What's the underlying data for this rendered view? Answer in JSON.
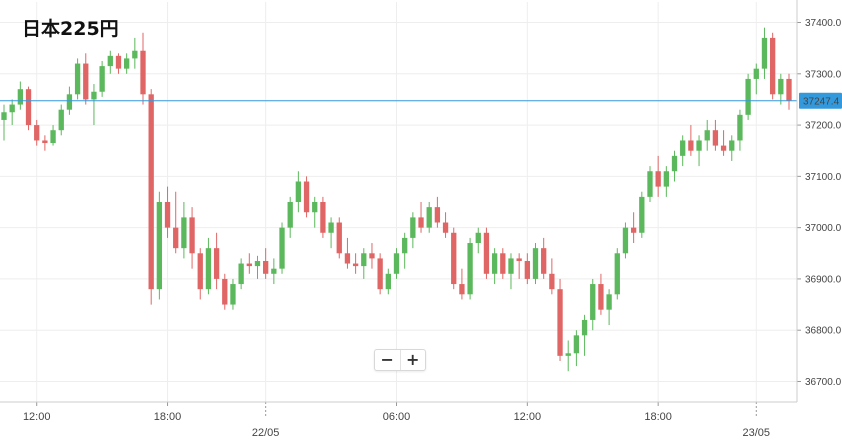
{
  "colors": {
    "up": "#5cb85c",
    "down": "#e06666",
    "price_line": "#3399dd",
    "price_badge": "#3399dd",
    "grid": "#eeeeee"
  },
  "zoom": {
    "minus": "−",
    "plus": "+",
    "minus_icon": "minus-icon",
    "plus_icon": "plus-icon"
  },
  "chart_data": {
    "type": "candlestick",
    "title": "日本225円",
    "xlabel": "",
    "ylabel": "",
    "ylim": [
      36660,
      37440
    ],
    "y_ticks": [
      36700,
      36800,
      36900,
      37000,
      37100,
      37200,
      37300,
      37400
    ],
    "y_tick_labels": [
      "36700.0",
      "36800.0",
      "36900.0",
      "37000.0",
      "37100.0",
      "37200.0",
      "37300.0",
      "37400.0"
    ],
    "x_ticks": [
      {
        "index": 4,
        "label": "12:00"
      },
      {
        "index": 20,
        "label": "18:00"
      },
      {
        "index": 32,
        "label": "22/05"
      },
      {
        "index": 48,
        "label": "06:00"
      },
      {
        "index": 64,
        "label": "12:00"
      },
      {
        "index": 80,
        "label": "18:00"
      },
      {
        "index": 92,
        "label": "23/05"
      }
    ],
    "current_price": 37247.4,
    "current_price_label": "37247.4",
    "grid": true,
    "candles": [
      [
        37210,
        37240,
        37170,
        37225
      ],
      [
        37225,
        37250,
        37200,
        37240
      ],
      [
        37240,
        37285,
        37230,
        37270
      ],
      [
        37270,
        37275,
        37190,
        37200
      ],
      [
        37200,
        37210,
        37160,
        37170
      ],
      [
        37170,
        37180,
        37150,
        37165
      ],
      [
        37165,
        37200,
        37160,
        37190
      ],
      [
        37190,
        37240,
        37180,
        37230
      ],
      [
        37230,
        37275,
        37220,
        37260
      ],
      [
        37260,
        37330,
        37250,
        37320
      ],
      [
        37320,
        37340,
        37240,
        37250
      ],
      [
        37250,
        37280,
        37200,
        37265
      ],
      [
        37265,
        37325,
        37255,
        37315
      ],
      [
        37315,
        37345,
        37300,
        37335
      ],
      [
        37335,
        37340,
        37300,
        37310
      ],
      [
        37310,
        37340,
        37300,
        37330
      ],
      [
        37330,
        37370,
        37310,
        37345
      ],
      [
        37345,
        37380,
        37240,
        37260
      ],
      [
        37260,
        37270,
        36850,
        36880
      ],
      [
        36880,
        37070,
        36860,
        37050
      ],
      [
        37050,
        37080,
        36980,
        37000
      ],
      [
        37000,
        37070,
        36950,
        36960
      ],
      [
        36960,
        37050,
        36940,
        37020
      ],
      [
        37020,
        37040,
        36920,
        36950
      ],
      [
        36950,
        36960,
        36860,
        36880
      ],
      [
        36880,
        36980,
        36870,
        36960
      ],
      [
        36960,
        36990,
        36880,
        36900
      ],
      [
        36900,
        36910,
        36840,
        36850
      ],
      [
        36850,
        36900,
        36840,
        36890
      ],
      [
        36890,
        36940,
        36880,
        36930
      ],
      [
        36930,
        36950,
        36910,
        36925
      ],
      [
        36925,
        36945,
        36900,
        36935
      ],
      [
        36935,
        36960,
        36900,
        36910
      ],
      [
        36910,
        36940,
        36890,
        36920
      ],
      [
        36920,
        37010,
        36910,
        37000
      ],
      [
        37000,
        37060,
        36980,
        37050
      ],
      [
        37050,
        37110,
        37030,
        37090
      ],
      [
        37090,
        37100,
        37020,
        37030
      ],
      [
        37030,
        37060,
        37000,
        37050
      ],
      [
        37050,
        37060,
        36980,
        36990
      ],
      [
        36990,
        37020,
        36960,
        37010
      ],
      [
        37010,
        37020,
        36940,
        36950
      ],
      [
        36950,
        36980,
        36920,
        36930
      ],
      [
        36930,
        36950,
        36910,
        36925
      ],
      [
        36925,
        36960,
        36900,
        36950
      ],
      [
        36950,
        36970,
        36920,
        36940
      ],
      [
        36940,
        36950,
        36870,
        36880
      ],
      [
        36880,
        36920,
        36870,
        36910
      ],
      [
        36910,
        36960,
        36900,
        36950
      ],
      [
        36950,
        36990,
        36920,
        36980
      ],
      [
        36980,
        37030,
        36960,
        37020
      ],
      [
        37020,
        37050,
        36990,
        37000
      ],
      [
        37000,
        37050,
        36990,
        37040
      ],
      [
        37040,
        37060,
        37000,
        37010
      ],
      [
        37010,
        37030,
        36980,
        36990
      ],
      [
        36990,
        37000,
        36880,
        36890
      ],
      [
        36890,
        36920,
        36860,
        36870
      ],
      [
        36870,
        36980,
        36860,
        36970
      ],
      [
        36970,
        37000,
        36950,
        36990
      ],
      [
        36990,
        37000,
        36900,
        36910
      ],
      [
        36910,
        36960,
        36890,
        36950
      ],
      [
        36950,
        36960,
        36900,
        36910
      ],
      [
        36910,
        36950,
        36880,
        36940
      ],
      [
        36940,
        36950,
        36900,
        36935
      ],
      [
        36935,
        36950,
        36890,
        36900
      ],
      [
        36900,
        36970,
        36890,
        36960
      ],
      [
        36960,
        36980,
        36900,
        36910
      ],
      [
        36910,
        36940,
        36870,
        36880
      ],
      [
        36880,
        36900,
        36740,
        36750
      ],
      [
        36750,
        36780,
        36720,
        36755
      ],
      [
        36755,
        36800,
        36730,
        36790
      ],
      [
        36790,
        36830,
        36750,
        36820
      ],
      [
        36820,
        36900,
        36800,
        36890
      ],
      [
        36890,
        36910,
        36830,
        36840
      ],
      [
        36840,
        36880,
        36810,
        36870
      ],
      [
        36870,
        36960,
        36860,
        36950
      ],
      [
        36950,
        37010,
        36940,
        37000
      ],
      [
        37000,
        37030,
        36970,
        36990
      ],
      [
        36990,
        37070,
        36980,
        37060
      ],
      [
        37060,
        37120,
        37050,
        37110
      ],
      [
        37110,
        37140,
        37060,
        37080
      ],
      [
        37080,
        37120,
        37060,
        37110
      ],
      [
        37110,
        37150,
        37090,
        37140
      ],
      [
        37140,
        37180,
        37120,
        37170
      ],
      [
        37170,
        37200,
        37140,
        37150
      ],
      [
        37150,
        37180,
        37120,
        37170
      ],
      [
        37170,
        37210,
        37150,
        37190
      ],
      [
        37190,
        37210,
        37150,
        37160
      ],
      [
        37160,
        37190,
        37140,
        37150
      ],
      [
        37150,
        37180,
        37130,
        37170
      ],
      [
        37170,
        37230,
        37150,
        37220
      ],
      [
        37220,
        37300,
        37210,
        37290
      ],
      [
        37290,
        37320,
        37260,
        37310
      ],
      [
        37310,
        37390,
        37290,
        37370
      ],
      [
        37370,
        37380,
        37250,
        37260
      ],
      [
        37260,
        37300,
        37240,
        37290
      ],
      [
        37290,
        37300,
        37230,
        37247.4
      ]
    ]
  }
}
